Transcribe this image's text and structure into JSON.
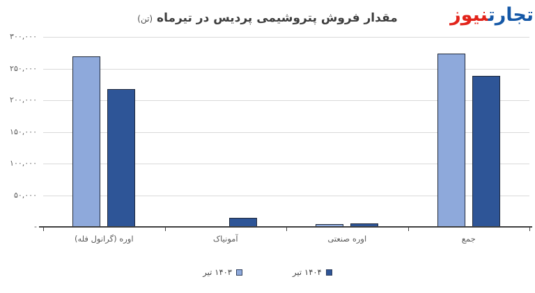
{
  "logo": {
    "word_right": "تجارت",
    "word_left": "نیوز",
    "color_right": "#1558a7",
    "color_left": "#e2231a"
  },
  "title": {
    "main": "مقدار فروش پتروشیمی پردیس در تیرماه",
    "unit": "(تن)"
  },
  "chart_data": {
    "type": "bar",
    "title": "مقدار فروش پتروشیمی پردیس در تیرماه (تن)",
    "categories": [
      "اوره (گرانول فله)",
      "آمونیاک",
      "اوره صنعتی",
      "جمع"
    ],
    "series": [
      {
        "name": "تیر ۱۴۰۳",
        "color": "#8EA9DB",
        "values": [
          269000,
          0,
          4800,
          274000
        ]
      },
      {
        "name": "تیر ۱۴۰۴",
        "color": "#2E5597",
        "values": [
          218000,
          14500,
          6000,
          238500
        ]
      }
    ],
    "ylim": [
      0,
      300000
    ],
    "ytick_step": 50000,
    "ytick_labels": [
      "۳۰۰,۰۰۰",
      "۲۵۰,۰۰۰",
      "۲۰۰,۰۰۰",
      "۱۵۰,۰۰۰",
      "۱۰۰,۰۰۰",
      "۵۰,۰۰۰",
      "-"
    ],
    "grid": true,
    "legend_position": "bottom",
    "legend": [
      {
        "word": "تیر",
        "year": "۱۴۰۳",
        "color": "#8EA9DB"
      },
      {
        "word": "تیر",
        "year": "۱۴۰۴",
        "color": "#2E5597"
      }
    ],
    "colors": {
      "gridline": "#d9d9d9",
      "axis": "#3f3f3f",
      "tick_label": "#595959",
      "bar_border": "#20293a"
    }
  }
}
